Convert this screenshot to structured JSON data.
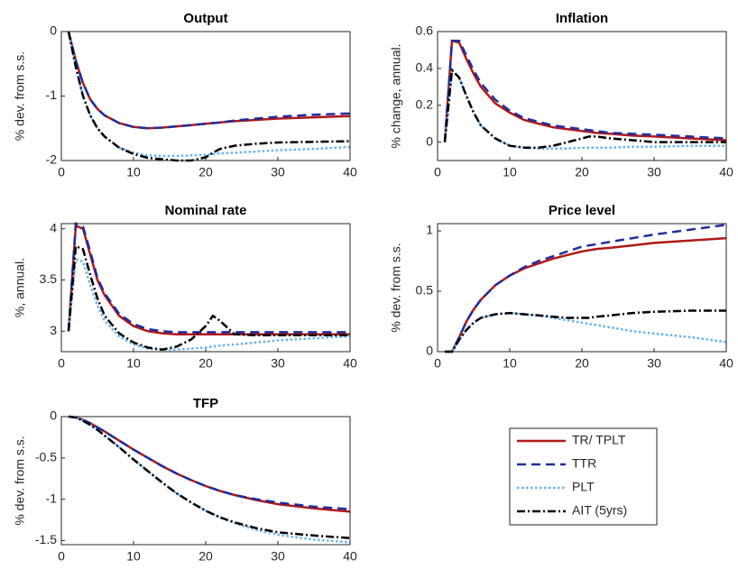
{
  "chart_data": [
    {
      "type": "line",
      "title": "Output",
      "ylabel": "% dev. from s.s.",
      "x": [
        1,
        2,
        3,
        4,
        5,
        6,
        8,
        10,
        12,
        14,
        16,
        18,
        20,
        21,
        22,
        24,
        27,
        30,
        35,
        40
      ],
      "xlim": [
        0,
        40
      ],
      "xticks": [
        0,
        10,
        20,
        30,
        40
      ],
      "ylim": [
        -2,
        0
      ],
      "yticks": [
        -2,
        -1,
        0
      ],
      "series": [
        {
          "name": "TR/ TPLT",
          "color": "#b01818",
          "style": "solid",
          "values": [
            0,
            -0.45,
            -0.8,
            -1.05,
            -1.2,
            -1.3,
            -1.42,
            -1.48,
            -1.5,
            -1.49,
            -1.47,
            -1.45,
            -1.43,
            -1.42,
            -1.41,
            -1.39,
            -1.37,
            -1.35,
            -1.33,
            -1.31
          ]
        },
        {
          "name": "TTR",
          "color": "#1f2d9e",
          "style": "dashed",
          "values": [
            0,
            -0.45,
            -0.8,
            -1.05,
            -1.2,
            -1.3,
            -1.42,
            -1.48,
            -1.5,
            -1.49,
            -1.47,
            -1.45,
            -1.43,
            -1.42,
            -1.41,
            -1.38,
            -1.35,
            -1.32,
            -1.29,
            -1.27
          ]
        },
        {
          "name": "PLT",
          "color": "#66b3f0",
          "style": "dotted",
          "values": [
            0,
            -0.55,
            -1.0,
            -1.3,
            -1.5,
            -1.63,
            -1.8,
            -1.88,
            -1.92,
            -1.93,
            -1.93,
            -1.92,
            -1.91,
            -1.9,
            -1.89,
            -1.88,
            -1.86,
            -1.84,
            -1.82,
            -1.79
          ]
        },
        {
          "name": "AIT (5yrs)",
          "color": "#000000",
          "style": "dashdot",
          "values": [
            0,
            -0.55,
            -1.0,
            -1.3,
            -1.5,
            -1.63,
            -1.8,
            -1.9,
            -1.96,
            -1.98,
            -2.0,
            -2.0,
            -1.95,
            -1.88,
            -1.82,
            -1.77,
            -1.74,
            -1.72,
            -1.71,
            -1.7
          ]
        }
      ]
    },
    {
      "type": "line",
      "title": "Inflation",
      "ylabel": "% change, annual.",
      "x": [
        1,
        2,
        3,
        4,
        5,
        6,
        8,
        10,
        12,
        14,
        16,
        18,
        20,
        21,
        22,
        24,
        27,
        30,
        35,
        40
      ],
      "xlim": [
        0,
        40
      ],
      "xticks": [
        0,
        10,
        20,
        30,
        40
      ],
      "ylim": [
        -0.1,
        0.6
      ],
      "yticks": [
        0,
        0.2,
        0.4,
        0.6
      ],
      "series": [
        {
          "values": [
            0,
            0.55,
            0.54,
            0.45,
            0.37,
            0.3,
            0.21,
            0.16,
            0.12,
            0.1,
            0.08,
            0.07,
            0.06,
            0.055,
            0.05,
            0.045,
            0.035,
            0.03,
            0.02,
            0.01
          ]
        },
        {
          "values": [
            0,
            0.55,
            0.55,
            0.47,
            0.39,
            0.32,
            0.23,
            0.17,
            0.13,
            0.11,
            0.09,
            0.08,
            0.07,
            0.065,
            0.06,
            0.05,
            0.045,
            0.04,
            0.03,
            0.02
          ]
        },
        {
          "values": [
            0,
            0.39,
            0.35,
            0.25,
            0.16,
            0.09,
            0.02,
            -0.02,
            -0.03,
            -0.035,
            -0.035,
            -0.035,
            -0.03,
            -0.03,
            -0.03,
            -0.03,
            -0.025,
            -0.025,
            -0.02,
            -0.02
          ]
        },
        {
          "values": [
            0,
            0.39,
            0.35,
            0.25,
            0.16,
            0.09,
            0.02,
            -0.02,
            -0.03,
            -0.03,
            -0.02,
            0,
            0.02,
            0.03,
            0.03,
            0.02,
            0.01,
            0,
            0,
            0
          ]
        }
      ]
    },
    {
      "type": "line",
      "title": "Nominal rate",
      "ylabel": "%, annual.",
      "x": [
        1,
        2,
        3,
        4,
        5,
        6,
        8,
        10,
        12,
        14,
        16,
        18,
        20,
        21,
        22,
        24,
        27,
        30,
        35,
        40
      ],
      "xlim": [
        0,
        40
      ],
      "xticks": [
        0,
        10,
        20,
        30,
        40
      ],
      "ylim": [
        2.8,
        4.05
      ],
      "yticks": [
        3,
        3.5,
        4
      ],
      "series": [
        {
          "values": [
            3,
            4.03,
            4.0,
            3.75,
            3.5,
            3.35,
            3.15,
            3.05,
            3.0,
            2.98,
            2.97,
            2.97,
            2.97,
            2.97,
            2.97,
            2.97,
            2.97,
            2.97,
            2.97,
            2.97
          ]
        },
        {
          "values": [
            3,
            4.05,
            4.02,
            3.78,
            3.52,
            3.37,
            3.17,
            3.07,
            3.02,
            3.0,
            2.99,
            2.99,
            2.99,
            2.99,
            2.99,
            2.99,
            2.99,
            2.99,
            2.99,
            2.99
          ]
        },
        {
          "values": [
            3,
            3.7,
            3.68,
            3.45,
            3.25,
            3.1,
            2.95,
            2.87,
            2.83,
            2.82,
            2.82,
            2.83,
            2.84,
            2.85,
            2.86,
            2.87,
            2.89,
            2.91,
            2.93,
            2.95
          ]
        },
        {
          "values": [
            3,
            3.83,
            3.8,
            3.55,
            3.32,
            3.15,
            2.98,
            2.89,
            2.84,
            2.82,
            2.85,
            2.92,
            3.05,
            3.15,
            3.1,
            2.97,
            2.96,
            2.96,
            2.96,
            2.96
          ]
        }
      ]
    },
    {
      "type": "line",
      "title": "Price level",
      "ylabel": "% dev. from s.s.",
      "x": [
        1,
        2,
        3,
        4,
        5,
        6,
        8,
        10,
        12,
        14,
        16,
        18,
        20,
        21,
        22,
        24,
        27,
        30,
        35,
        40
      ],
      "xlim": [
        0,
        40
      ],
      "xticks": [
        0,
        10,
        20,
        30,
        40
      ],
      "ylim": [
        0,
        1.06
      ],
      "yticks": [
        0,
        0.5,
        1
      ],
      "series": [
        {
          "values": [
            0,
            0,
            0.12,
            0.25,
            0.35,
            0.43,
            0.55,
            0.63,
            0.69,
            0.73,
            0.77,
            0.8,
            0.83,
            0.84,
            0.85,
            0.86,
            0.88,
            0.9,
            0.92,
            0.94
          ]
        },
        {
          "values": [
            0,
            0,
            0.12,
            0.25,
            0.35,
            0.43,
            0.55,
            0.63,
            0.7,
            0.75,
            0.79,
            0.83,
            0.87,
            0.88,
            0.89,
            0.91,
            0.94,
            0.97,
            1.01,
            1.05
          ]
        },
        {
          "values": [
            0,
            0,
            0.1,
            0.18,
            0.24,
            0.28,
            0.31,
            0.32,
            0.31,
            0.3,
            0.28,
            0.26,
            0.24,
            0.23,
            0.22,
            0.2,
            0.17,
            0.15,
            0.12,
            0.08
          ]
        },
        {
          "values": [
            0,
            0,
            0.1,
            0.18,
            0.24,
            0.28,
            0.31,
            0.32,
            0.31,
            0.3,
            0.29,
            0.28,
            0.28,
            0.28,
            0.29,
            0.3,
            0.32,
            0.33,
            0.34,
            0.34
          ]
        }
      ]
    },
    {
      "type": "line",
      "title": "TFP",
      "ylabel": "% dev. from s.s.",
      "x": [
        1,
        2,
        3,
        4,
        5,
        6,
        8,
        10,
        12,
        14,
        16,
        18,
        20,
        21,
        22,
        24,
        27,
        30,
        35,
        40
      ],
      "xlim": [
        0,
        40
      ],
      "xticks": [
        0,
        10,
        20,
        30,
        40
      ],
      "ylim": [
        -1.55,
        0
      ],
      "yticks": [
        -1.5,
        -1,
        -0.5,
        0
      ],
      "series": [
        {
          "values": [
            0,
            -0.01,
            -0.04,
            -0.08,
            -0.13,
            -0.18,
            -0.29,
            -0.4,
            -0.5,
            -0.6,
            -0.69,
            -0.77,
            -0.84,
            -0.87,
            -0.9,
            -0.95,
            -1.01,
            -1.06,
            -1.11,
            -1.15
          ]
        },
        {
          "values": [
            0,
            -0.01,
            -0.04,
            -0.08,
            -0.13,
            -0.18,
            -0.29,
            -0.4,
            -0.5,
            -0.6,
            -0.69,
            -0.77,
            -0.84,
            -0.87,
            -0.9,
            -0.95,
            -1.0,
            -1.04,
            -1.09,
            -1.12
          ]
        },
        {
          "values": [
            0,
            -0.01,
            -0.05,
            -0.1,
            -0.16,
            -0.23,
            -0.37,
            -0.52,
            -0.66,
            -0.8,
            -0.93,
            -1.04,
            -1.14,
            -1.18,
            -1.22,
            -1.29,
            -1.37,
            -1.43,
            -1.49,
            -1.52
          ]
        },
        {
          "values": [
            0,
            -0.01,
            -0.05,
            -0.1,
            -0.16,
            -0.23,
            -0.37,
            -0.52,
            -0.66,
            -0.8,
            -0.93,
            -1.04,
            -1.14,
            -1.18,
            -1.22,
            -1.28,
            -1.35,
            -1.4,
            -1.44,
            -1.47
          ]
        }
      ]
    }
  ]
}
